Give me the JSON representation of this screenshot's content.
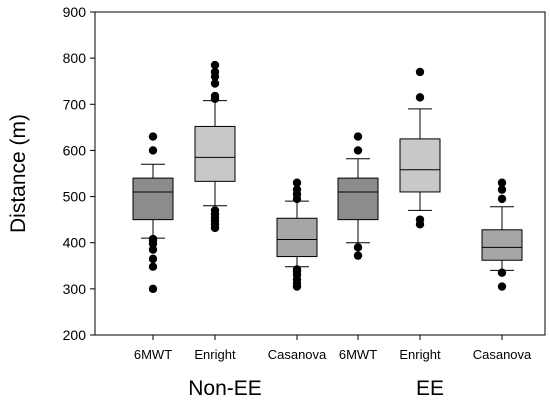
{
  "chart_data": {
    "type": "box",
    "ylabel": "Distance (m)",
    "xlabel": "",
    "ylim": [
      200,
      900
    ],
    "yticks": [
      200,
      300,
      400,
      500,
      600,
      700,
      800,
      900
    ],
    "grid": false,
    "groups": [
      {
        "label": "Non-EE",
        "categories": [
          "6MWT",
          "Enright",
          "Casanova"
        ]
      },
      {
        "label": "EE",
        "categories": [
          "6MWT",
          "Enright",
          "Casanova"
        ]
      }
    ],
    "boxes": [
      {
        "group": "Non-EE",
        "category": "6MWT",
        "color": "#8c8c8c",
        "whisker_low": 410,
        "q1": 450,
        "median": 510,
        "q3": 540,
        "whisker_high": 570,
        "outliers": [
          300,
          348,
          365,
          385,
          398,
          405,
          408,
          600,
          630
        ]
      },
      {
        "group": "Non-EE",
        "category": "Enright",
        "color": "#c8c8c8",
        "whisker_low": 480,
        "q1": 533,
        "median": 585,
        "q3": 652,
        "whisker_high": 708,
        "outliers": [
          432,
          440,
          448,
          455,
          462,
          470,
          712,
          718,
          745,
          760,
          770,
          785
        ]
      },
      {
        "group": "Non-EE",
        "category": "Casanova",
        "color": "#a6a6a6",
        "whisker_low": 348,
        "q1": 370,
        "median": 407,
        "q3": 453,
        "whisker_high": 490,
        "outliers": [
          305,
          312,
          320,
          330,
          338,
          342,
          495,
          505,
          515,
          530
        ]
      },
      {
        "group": "EE",
        "category": "6MWT",
        "color": "#8c8c8c",
        "whisker_low": 400,
        "q1": 450,
        "median": 510,
        "q3": 540,
        "whisker_high": 582,
        "outliers": [
          372,
          390,
          600,
          630
        ]
      },
      {
        "group": "EE",
        "category": "Enright",
        "color": "#c8c8c8",
        "whisker_low": 470,
        "q1": 510,
        "median": 558,
        "q3": 625,
        "whisker_high": 690,
        "outliers": [
          440,
          450,
          715,
          770
        ]
      },
      {
        "group": "EE",
        "category": "Casanova",
        "color": "#a6a6a6",
        "whisker_low": 340,
        "q1": 362,
        "median": 390,
        "q3": 428,
        "whisker_high": 478,
        "outliers": [
          305,
          335,
          495,
          515,
          530
        ]
      }
    ]
  }
}
